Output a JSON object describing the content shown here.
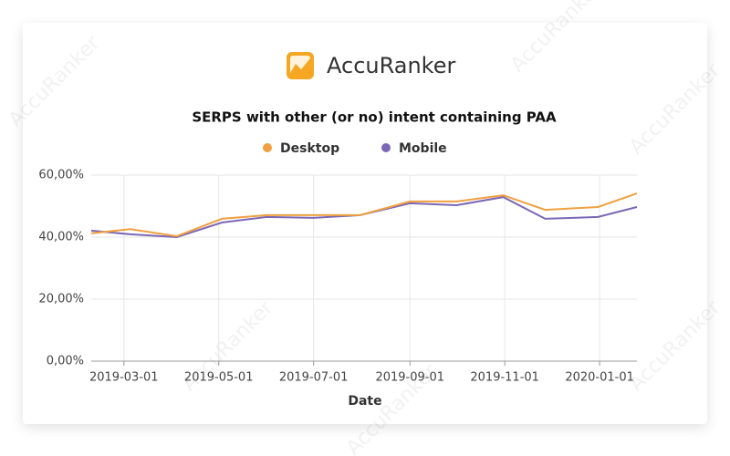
{
  "brand": "AccuRanker",
  "watermark": "AccuRanker",
  "chart_data": {
    "type": "line",
    "title": "SERPS with other (or no) intent containing PAA",
    "x_label": "Date",
    "x": [
      "2019-02-08",
      "2019-03-05",
      "2019-04-04",
      "2019-05-03",
      "2019-06-01",
      "2019-07-01",
      "2019-07-31",
      "2019-09-01",
      "2019-10-01",
      "2019-10-31",
      "2019-11-27",
      "2019-12-31",
      "2020-01-25"
    ],
    "series": [
      {
        "name": "Desktop",
        "color": "#f0a040",
        "values": [
          41.2,
          42.6,
          40.3,
          45.9,
          47.1,
          47.1,
          47.1,
          51.5,
          51.5,
          53.5,
          48.8,
          49.7,
          54.1
        ]
      },
      {
        "name": "Mobile",
        "color": "#7b68b5",
        "values": [
          42.1,
          40.9,
          40.0,
          44.7,
          46.5,
          46.2,
          47.1,
          50.9,
          50.3,
          52.9,
          45.9,
          46.5,
          49.7
        ]
      }
    ],
    "xlim": [
      "2019-02-08",
      "2020-01-25"
    ],
    "xticks": [
      "2019-03-01",
      "2019-05-01",
      "2019-07-01",
      "2019-09-01",
      "2019-11-01",
      "2020-01-01"
    ],
    "ylim": [
      0,
      60
    ],
    "yticks": [
      {
        "value": 0,
        "label": "0,00%"
      },
      {
        "value": 20,
        "label": "20,00%"
      },
      {
        "value": 40,
        "label": "40,00%"
      },
      {
        "value": 60,
        "label": "60,00%"
      }
    ],
    "grid": true,
    "legend": "top"
  }
}
